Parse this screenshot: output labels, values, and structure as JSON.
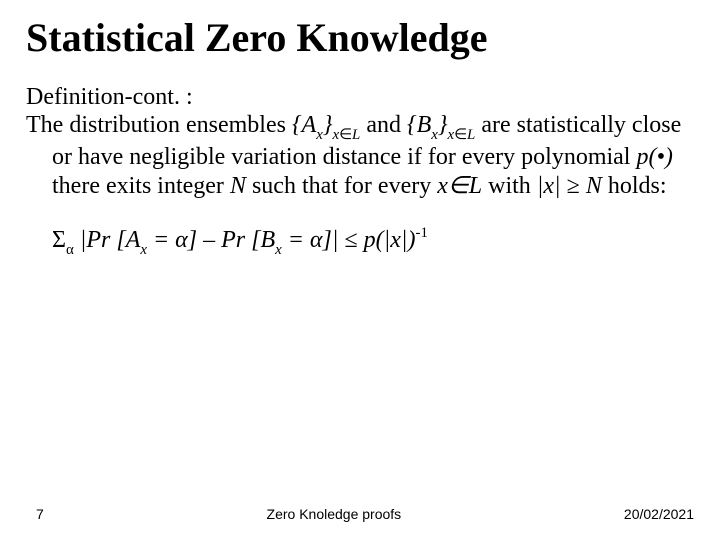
{
  "title": "Statistical Zero Knowledge",
  "title_fontsize": 40,
  "body_fontsize": 24,
  "def_label": "Definition-cont. :",
  "para_lead": "The distribution ensembles ",
  "ens_A_open": "{A",
  "ens_A_close": "}",
  "sub_x": "x",
  "sub_in": "∈",
  "sub_L": "L",
  "and_word": " and ",
  "ens_B_open": "{B",
  "ens_B_close": "}",
  "para_rest": " are statistically close or have negligible variation distance if for every polynomial ",
  "poly": "p(•)",
  "para_rest2": " there exits integer ",
  "int_N": "N",
  "para_rest3": " such that for every ",
  "x_in_L": "x∈L",
  "para_rest4": " with ",
  "absx": "|x|",
  "geq": " ≥ ",
  "N2": "N",
  "holds": " holds:",
  "sigma": "Σ",
  "alpha": "α",
  "pr_A_open": " |Pr [A",
  "eq_alpha": " = α]",
  "minus": " – ",
  "pr_B_open": "Pr [B",
  "eq_alpha2": " = α]|",
  "leq": " ≤ ",
  "p_of": "p(|x|)",
  "neg1": "-1",
  "footer": {
    "page": "7",
    "center": "Zero Knoledge proofs",
    "date": "20/02/2021"
  },
  "footer_fontsize": 14,
  "text_color": "#000000",
  "background_color": "#ffffff"
}
